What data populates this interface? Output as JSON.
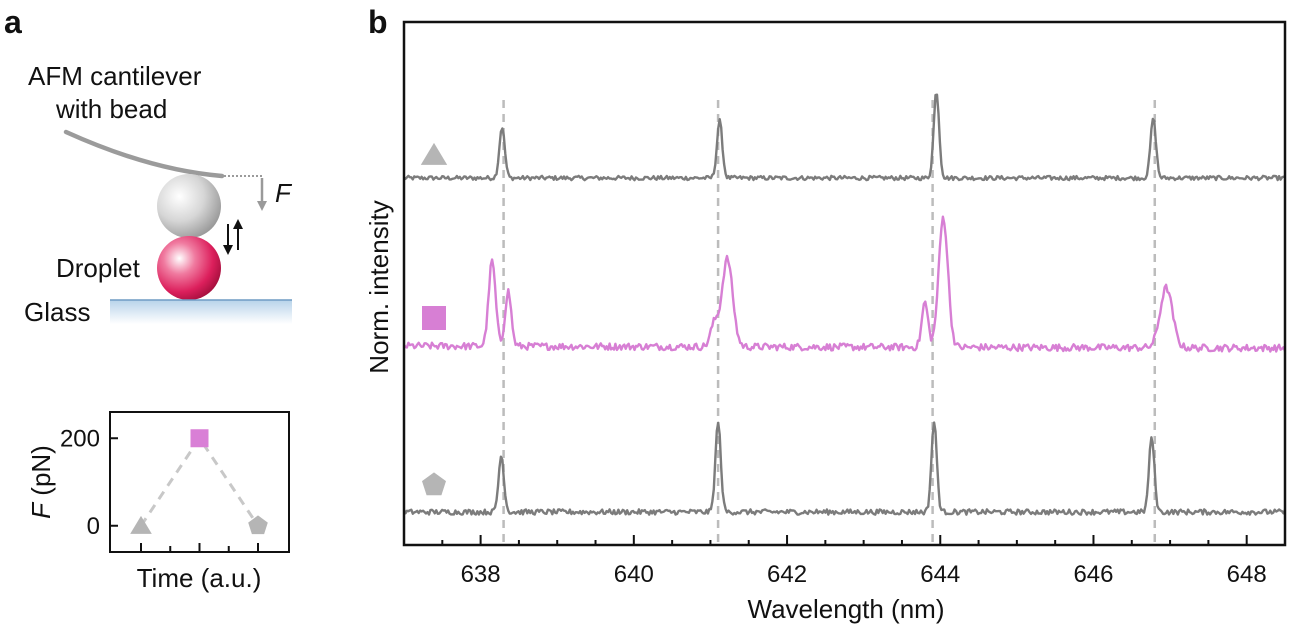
{
  "panel_a": {
    "letter": "a",
    "cantilever_label_line1": "AFM cantilever",
    "cantilever_label_line2": "with bead",
    "force_symbol": "F",
    "droplet_label": "Droplet",
    "glass_label": "Glass"
  },
  "panel_b": {
    "letter": "b"
  },
  "chart_data": [
    {
      "type": "line",
      "panel": "a (inset)",
      "ylabel_symbol": "F",
      "ylabel_unit": " (pN)",
      "xlabel": "Time (a.u.)",
      "yticks": [
        0,
        200
      ],
      "ylim": [
        -60,
        260
      ],
      "x": [
        0,
        1,
        2
      ],
      "y": [
        0,
        200,
        0
      ],
      "markers": [
        "triangle",
        "square",
        "pentagon"
      ],
      "marker_colors": [
        "#b5b5b5",
        "#d97fd6",
        "#b5b5b5"
      ],
      "line_color": "#c8c8c8",
      "line_style": "dashed"
    },
    {
      "type": "line",
      "panel": "b",
      "xlabel": "Wavelength (nm)",
      "ylabel": "Norm. intensity",
      "xlim": [
        637.0,
        648.5
      ],
      "xticks": [
        638,
        640,
        642,
        644,
        646,
        648
      ],
      "dashed_reference_lines": [
        638.3,
        641.1,
        643.9,
        646.8
      ],
      "series": [
        {
          "marker": "triangle",
          "color": "#7c7c7c",
          "marker_color": "#b5b5b5",
          "baseline": 0.0,
          "peaks": [
            {
              "x": 638.28,
              "height": 0.85,
              "width": 0.035
            },
            {
              "x": 641.12,
              "height": 0.95,
              "width": 0.035
            },
            {
              "x": 643.95,
              "height": 1.45,
              "width": 0.035
            },
            {
              "x": 646.78,
              "height": 1.0,
              "width": 0.035
            }
          ]
        },
        {
          "marker": "square",
          "color": "#d77fd4",
          "marker_color": "#d77fd4",
          "baseline": 0.0,
          "peaks": [
            {
              "x": 638.15,
              "height": 0.85,
              "width": 0.045
            },
            {
              "x": 638.36,
              "height": 0.55,
              "width": 0.04
            },
            {
              "x": 641.05,
              "height": 0.22,
              "width": 0.05
            },
            {
              "x": 641.22,
              "height": 0.88,
              "width": 0.07
            },
            {
              "x": 643.8,
              "height": 0.45,
              "width": 0.04
            },
            {
              "x": 644.04,
              "height": 1.3,
              "width": 0.06
            },
            {
              "x": 646.95,
              "height": 0.6,
              "width": 0.08
            }
          ]
        },
        {
          "marker": "pentagon",
          "color": "#7c7c7c",
          "marker_color": "#b5b5b5",
          "baseline": 0.0,
          "peaks": [
            {
              "x": 638.27,
              "height": 0.75,
              "width": 0.035
            },
            {
              "x": 641.1,
              "height": 1.2,
              "width": 0.035
            },
            {
              "x": 643.92,
              "height": 1.2,
              "width": 0.035
            },
            {
              "x": 646.76,
              "height": 1.0,
              "width": 0.035
            }
          ]
        }
      ]
    }
  ]
}
